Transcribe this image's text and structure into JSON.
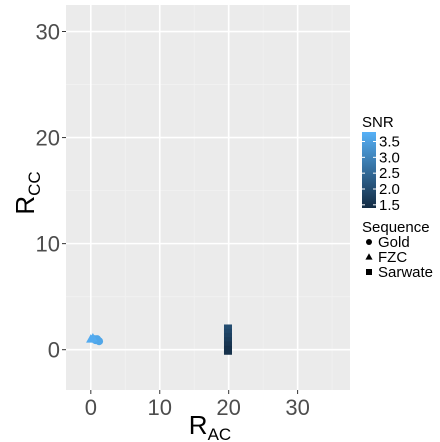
{
  "chart_data": {
    "type": "scatter",
    "title": "",
    "xlabel": {
      "main": "R",
      "sub": "AC"
    },
    "ylabel": {
      "main": "R",
      "sub": "CC"
    },
    "xlim": [
      -3.6,
      37.6
    ],
    "ylim": [
      -3.8,
      32.5
    ],
    "x_ticks": [
      0,
      10,
      20,
      30
    ],
    "y_ticks": [
      0,
      10,
      20,
      30
    ],
    "x_tick_labels": [
      "0",
      "10",
      "20",
      "30"
    ],
    "y_tick_labels": [
      "0",
      "10",
      "20",
      "30"
    ],
    "grid": true,
    "colors": {
      "panel_bg": "#ebebeb",
      "grid_major": "#ffffff",
      "grid_minor": "#f2f2f2",
      "snr_low": "#132b43",
      "snr_high": "#56b1f7"
    },
    "color_scale": {
      "title": "SNR",
      "min": 1.4,
      "max": 3.8,
      "breaks": [
        3.5,
        3.0,
        2.5,
        2.0,
        1.5
      ],
      "break_labels": [
        "3.5",
        "3.0",
        "2.5",
        "2.0",
        "1.5"
      ]
    },
    "shape_legend": {
      "title": "Sequence",
      "items": [
        {
          "label": "Gold",
          "shape": "circle"
        },
        {
          "label": "FZC",
          "shape": "triangle"
        },
        {
          "label": "Sarwate",
          "shape": "square"
        }
      ]
    },
    "legend_position": "right",
    "series": [
      {
        "name": "Gold",
        "shape": "circle",
        "points": [
          {
            "x": 0.5,
            "y": 1.0,
            "snr": 3.6
          },
          {
            "x": 0.7,
            "y": 0.9,
            "snr": 3.6
          },
          {
            "x": 1.0,
            "y": 0.9,
            "snr": 3.6
          },
          {
            "x": 1.2,
            "y": 0.8,
            "snr": 3.6
          },
          {
            "x": 0.9,
            "y": 1.0,
            "snr": 3.6
          }
        ]
      },
      {
        "name": "FZC",
        "shape": "triangle",
        "points": [
          {
            "x": 0.3,
            "y": 1.1,
            "snr": 3.7
          },
          {
            "x": 0.0,
            "y": 1.0,
            "snr": 3.7
          }
        ]
      },
      {
        "name": "Sarwate",
        "shape": "square",
        "points": [
          {
            "x": 19.9,
            "y": 2.0,
            "snr": 2.0
          },
          {
            "x": 19.9,
            "y": 1.6,
            "snr": 1.9
          },
          {
            "x": 19.9,
            "y": 1.2,
            "snr": 1.8
          },
          {
            "x": 19.9,
            "y": 0.8,
            "snr": 1.7
          },
          {
            "x": 19.9,
            "y": 0.4,
            "snr": 1.6
          },
          {
            "x": 19.9,
            "y": 0.0,
            "snr": 1.5
          },
          {
            "x": 19.9,
            "y": -0.1,
            "snr": 1.5
          }
        ]
      }
    ]
  }
}
